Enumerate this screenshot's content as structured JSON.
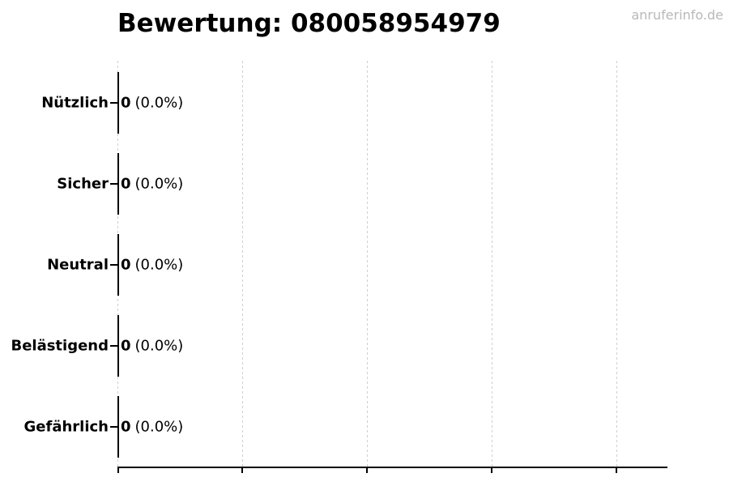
{
  "title": "Bewertung: 080058954979",
  "watermark": "anruferinfo.de",
  "colors": {
    "text": "#000000",
    "watermark": "#b8b8b8",
    "gridline": "#cfcfcf",
    "axis": "#000000",
    "background": "#ffffff"
  },
  "chart_data": {
    "type": "bar",
    "orientation": "horizontal",
    "title": "Bewertung: 080058954979",
    "categories": [
      "Nützlich",
      "Sicher",
      "Neutral",
      "Belästigend",
      "Gefährlich"
    ],
    "values": [
      0,
      0,
      0,
      0,
      0
    ],
    "value_labels": [
      "0",
      "0",
      "0",
      "0",
      "0"
    ],
    "pct_labels": [
      "(0.0%)",
      "(0.0%)",
      "(0.0%)",
      "(0.0%)",
      "(0.0%)"
    ],
    "xlabel": "",
    "ylabel": "",
    "x_tick_labels": [],
    "x_gridline_count": 5,
    "grid": true,
    "grid_style": "dashed-vertical",
    "legend": false
  }
}
